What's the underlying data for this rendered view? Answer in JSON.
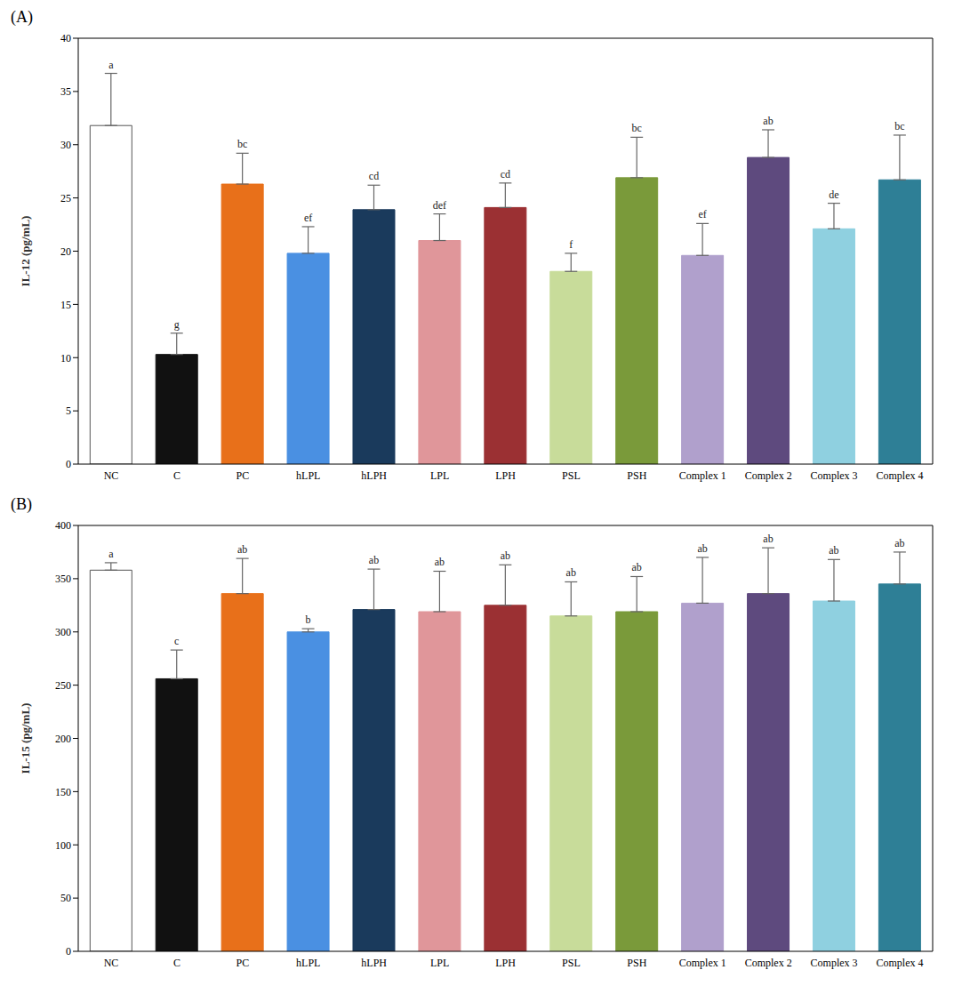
{
  "chart_data": [
    {
      "type": "bar",
      "title": "(A)",
      "y_label": "IL-12 (pg/mL)",
      "categories": [
        "NC",
        "C",
        "PC",
        "hLPL",
        "hLPH",
        "LPL",
        "LPH",
        "PSL",
        "PSH",
        "Complex 1",
        "Complex 2",
        "Complex 3",
        "Complex 4"
      ],
      "values": [
        31.8,
        10.3,
        26.3,
        19.8,
        23.9,
        21.0,
        24.1,
        18.1,
        26.9,
        19.6,
        28.8,
        22.1,
        26.7
      ],
      "errors": [
        4.9,
        2.0,
        2.9,
        2.5,
        2.3,
        2.5,
        2.3,
        1.7,
        3.8,
        3.0,
        2.6,
        2.4,
        4.2
      ],
      "letters": [
        "a",
        "g",
        "bc",
        "ef",
        "cd",
        "def",
        "cd",
        "f",
        "bc",
        "ef",
        "ab",
        "de",
        "bc"
      ],
      "colors": [
        "#ffffff",
        "#111111",
        "#e8701a",
        "#4a90e2",
        "#1a3a5c",
        "#e0969a",
        "#9b3033",
        "#c8dc9a",
        "#7a9a3a",
        "#b0a0cc",
        "#5e4a7e",
        "#8fd0e0",
        "#2e7f96"
      ],
      "ylim": [
        0,
        40
      ],
      "yticks": [
        0,
        5,
        10,
        15,
        20,
        25,
        30,
        35,
        40
      ],
      "grid": false
    },
    {
      "type": "bar",
      "title": "(B)",
      "y_label": "IL-15 (pg/mL)",
      "categories": [
        "NC",
        "C",
        "PC",
        "hLPL",
        "hLPH",
        "LPL",
        "LPH",
        "PSL",
        "PSH",
        "Complex 1",
        "Complex 2",
        "Complex 3",
        "Complex 4"
      ],
      "values": [
        358,
        256,
        336,
        300,
        321,
        319,
        325,
        315,
        319,
        327,
        336,
        329,
        345
      ],
      "errors": [
        7,
        27,
        33,
        3,
        38,
        38,
        38,
        32,
        33,
        43,
        43,
        39,
        30
      ],
      "letters": [
        "a",
        "c",
        "ab",
        "b",
        "ab",
        "ab",
        "ab",
        "ab",
        "ab",
        "ab",
        "ab",
        "ab",
        "ab"
      ],
      "colors": [
        "#ffffff",
        "#111111",
        "#e8701a",
        "#4a90e2",
        "#1a3a5c",
        "#e0969a",
        "#9b3033",
        "#c8dc9a",
        "#7a9a3a",
        "#b0a0cc",
        "#5e4a7e",
        "#8fd0e0",
        "#2e7f96"
      ],
      "ylim": [
        0,
        400
      ],
      "yticks": [
        0,
        50,
        100,
        150,
        200,
        250,
        300,
        350,
        400
      ],
      "grid": false
    }
  ]
}
